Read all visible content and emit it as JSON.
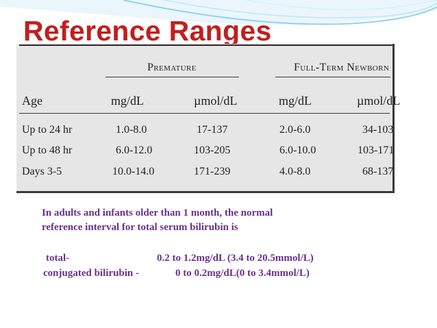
{
  "slide": {
    "title": "Reference Ranges"
  },
  "table": {
    "groups": [
      "Premature",
      "Full-Term Newborn"
    ],
    "headers": {
      "age": "Age",
      "premature_mg": "mg/dL",
      "premature_umol": "µmol/dL",
      "fullterm_mg": "mg/dL",
      "fullterm_umol": "µmol/dL"
    },
    "rows": [
      {
        "age": "Up to 24 hr",
        "premature_mg": "1.0-8.0",
        "premature_umol": "17-137",
        "fullterm_mg": "2.0-6.0",
        "fullterm_umol": "34-103"
      },
      {
        "age": "Up to 48 hr",
        "premature_mg": "6.0-12.0",
        "premature_umol": "103-205",
        "fullterm_mg": "6.0-10.0",
        "fullterm_umol": "103-171"
      },
      {
        "age": "Days 3-5",
        "premature_mg": "10.0-14.0",
        "premature_umol": "171-239",
        "fullterm_mg": "4.0-8.0",
        "fullterm_umol": "68-137"
      }
    ]
  },
  "note": {
    "line1": "In adults and infants older than 1 month, the normal",
    "line2": "reference interval for total serum bilirubin is",
    "total_label": "total-",
    "total_value": "0.2 to 1.2mg/dL (3.4 to 20.5mmol/L)",
    "conjugated_label": "conjugated bilirubin -",
    "conjugated_value": "0 to 0.2mg/dL(0 to 3.4mmol/L)"
  },
  "colors": {
    "title": "#c0201f",
    "body_text": "#6b2f8f",
    "wave_accent": "#8fd3ec"
  }
}
